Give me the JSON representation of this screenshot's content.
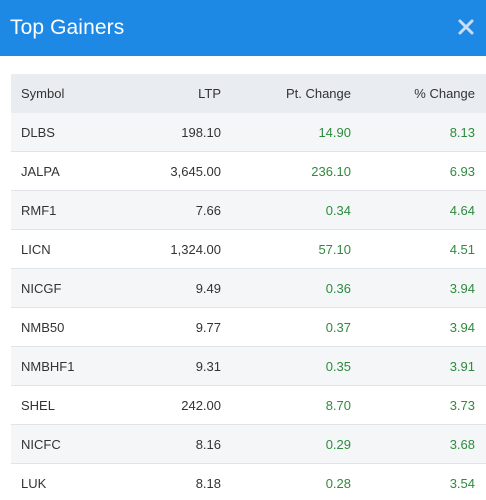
{
  "header": {
    "title": "Top Gainers",
    "close_icon": "close-icon"
  },
  "colors": {
    "header_bg": "#1e88e5",
    "positive": "#2e8b3e",
    "table_header_bg": "#e9edf2"
  },
  "table": {
    "columns": [
      "Symbol",
      "LTP",
      "Pt. Change",
      "% Change"
    ],
    "rows": [
      {
        "symbol": "DLBS",
        "ltp": "198.10",
        "pt": "14.90",
        "pct": "8.13"
      },
      {
        "symbol": "JALPA",
        "ltp": "3,645.00",
        "pt": "236.10",
        "pct": "6.93"
      },
      {
        "symbol": "RMF1",
        "ltp": "7.66",
        "pt": "0.34",
        "pct": "4.64"
      },
      {
        "symbol": "LICN",
        "ltp": "1,324.00",
        "pt": "57.10",
        "pct": "4.51"
      },
      {
        "symbol": "NICGF",
        "ltp": "9.49",
        "pt": "0.36",
        "pct": "3.94"
      },
      {
        "symbol": "NMB50",
        "ltp": "9.77",
        "pt": "0.37",
        "pct": "3.94"
      },
      {
        "symbol": "NMBHF1",
        "ltp": "9.31",
        "pt": "0.35",
        "pct": "3.91"
      },
      {
        "symbol": "SHEL",
        "ltp": "242.00",
        "pt": "8.70",
        "pct": "3.73"
      },
      {
        "symbol": "NICFC",
        "ltp": "8.16",
        "pt": "0.29",
        "pct": "3.68"
      },
      {
        "symbol": "LUK",
        "ltp": "8.18",
        "pt": "0.28",
        "pct": "3.54"
      }
    ]
  }
}
